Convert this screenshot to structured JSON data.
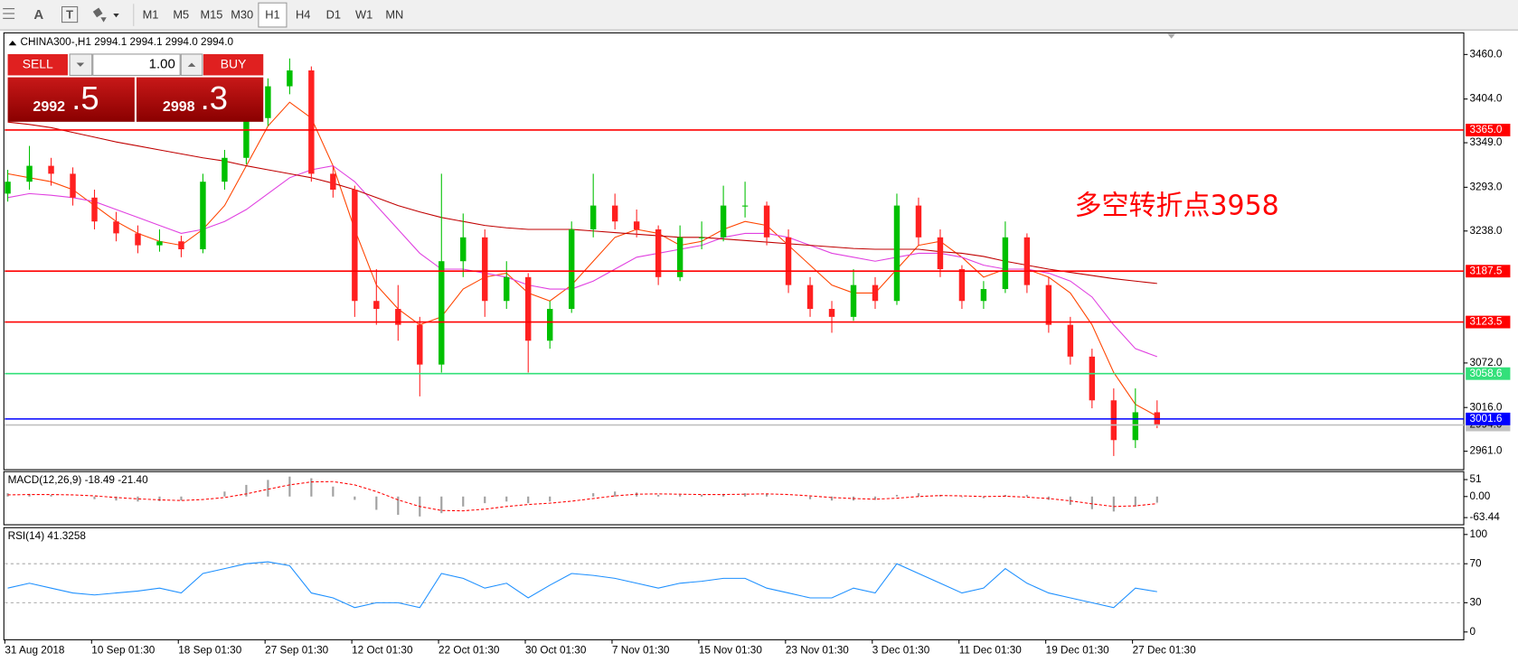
{
  "toolbar": {
    "tools": [
      "A",
      "T"
    ],
    "timeframes": [
      "M1",
      "M5",
      "M15",
      "M30",
      "H1",
      "H4",
      "D1",
      "W1",
      "MN"
    ],
    "active": "H1"
  },
  "trade_panel": {
    "sell": "SELL",
    "volume": "1.00",
    "buy": "BUY",
    "bid": "2992",
    "bid_fraction": ".5",
    "ask": "2998",
    "ask_fraction": ".3"
  },
  "chart_data": [
    {
      "type": "candlestick",
      "title": "CHINA300-,H1 2994.1 2994.1 2994.0 2994.0",
      "annotation": "多空转折点3958",
      "annotation_color": "#ff0000",
      "categories": [
        "31 Aug 2018",
        null,
        null,
        null,
        "10 Sep 01:30",
        null,
        null,
        null,
        "18 Sep 01:30",
        null,
        null,
        null,
        "27 Sep 01:30",
        null,
        null,
        null,
        "12 Oct 01:30",
        null,
        null,
        null,
        "22 Oct 01:30",
        null,
        null,
        null,
        "30 Oct 01:30",
        null,
        null,
        null,
        "7 Nov 01:30",
        null,
        null,
        null,
        "15 Nov 01:30",
        null,
        null,
        null,
        "23 Nov 01:30",
        null,
        null,
        null,
        "3 Dec 01:30",
        null,
        null,
        null,
        "11 Dec 01:30",
        null,
        null,
        null,
        "19 Dec 01:30",
        null,
        null,
        null,
        "27 Dec 01:30",
        null
      ],
      "open": [
        3285,
        3300,
        3320,
        3310,
        3280,
        3250,
        3235,
        3220,
        3225,
        3215,
        3300,
        3330,
        3380,
        3420,
        3440,
        3310,
        3290,
        3150,
        3140,
        3120,
        3070,
        3200,
        3230,
        3150,
        3180,
        3100,
        3140,
        3240,
        3270,
        3250,
        3240,
        3180,
        3230,
        3230,
        3270,
        3270,
        3230,
        3170,
        3140,
        3130,
        3170,
        3150,
        3270,
        3230,
        3190,
        3150,
        3165,
        3230,
        3170,
        3120,
        3080,
        3025,
        2975,
        3010
      ],
      "high": [
        3315,
        3345,
        3330,
        3318,
        3290,
        3262,
        3245,
        3240,
        3232,
        3310,
        3340,
        3395,
        3430,
        3455,
        3445,
        3320,
        3295,
        3190,
        3170,
        3130,
        3310,
        3260,
        3240,
        3200,
        3185,
        3150,
        3250,
        3310,
        3285,
        3265,
        3245,
        3245,
        3250,
        3295,
        3300,
        3275,
        3240,
        3180,
        3150,
        3190,
        3180,
        3285,
        3280,
        3240,
        3195,
        3175,
        3250,
        3235,
        3180,
        3130,
        3090,
        3040,
        3040,
        3025
      ],
      "low": [
        3275,
        3290,
        3295,
        3270,
        3240,
        3225,
        3210,
        3212,
        3205,
        3210,
        3290,
        3322,
        3370,
        3410,
        3300,
        3280,
        3130,
        3120,
        3100,
        3030,
        3060,
        3180,
        3130,
        3140,
        3060,
        3090,
        3135,
        3230,
        3240,
        3230,
        3170,
        3175,
        3215,
        3225,
        3255,
        3220,
        3160,
        3130,
        3110,
        3125,
        3140,
        3145,
        3220,
        3180,
        3140,
        3140,
        3160,
        3160,
        3110,
        3070,
        3015,
        2955,
        2965,
        2990
      ],
      "close": [
        3300,
        3320,
        3310,
        3280,
        3250,
        3235,
        3220,
        3225,
        3215,
        3300,
        3330,
        3380,
        3420,
        3440,
        3310,
        3290,
        3150,
        3140,
        3120,
        3070,
        3200,
        3230,
        3150,
        3180,
        3100,
        3140,
        3240,
        3270,
        3250,
        3240,
        3180,
        3230,
        3230,
        3270,
        3270,
        3230,
        3170,
        3140,
        3130,
        3170,
        3150,
        3270,
        3230,
        3190,
        3150,
        3165,
        3230,
        3170,
        3120,
        3080,
        3025,
        2975,
        3010,
        2994
      ],
      "up_color": "#00c000",
      "down_color": "#ff2020",
      "series": [
        {
          "color": "#ff4500",
          "values": [
            3310,
            3305,
            3300,
            3290,
            3270,
            3250,
            3235,
            3225,
            3220,
            3240,
            3270,
            3320,
            3370,
            3400,
            3380,
            3320,
            3240,
            3170,
            3140,
            3120,
            3130,
            3165,
            3180,
            3185,
            3160,
            3150,
            3170,
            3200,
            3230,
            3240,
            3235,
            3220,
            3225,
            3240,
            3250,
            3245,
            3220,
            3195,
            3170,
            3160,
            3160,
            3190,
            3220,
            3225,
            3205,
            3180,
            3190,
            3190,
            3180,
            3160,
            3120,
            3060,
            3020,
            3005
          ]
        },
        {
          "color": "#e040e0",
          "values": [
            3280,
            3285,
            3283,
            3280,
            3275,
            3265,
            3255,
            3245,
            3235,
            3240,
            3250,
            3265,
            3285,
            3305,
            3315,
            3320,
            3300,
            3270,
            3240,
            3210,
            3190,
            3190,
            3185,
            3180,
            3170,
            3165,
            3165,
            3175,
            3190,
            3205,
            3210,
            3215,
            3220,
            3230,
            3235,
            3235,
            3230,
            3220,
            3210,
            3205,
            3200,
            3205,
            3210,
            3210,
            3205,
            3195,
            3190,
            3190,
            3185,
            3175,
            3155,
            3120,
            3090,
            3080
          ]
        },
        {
          "color": "#c00000",
          "values": [
            3375,
            3372,
            3368,
            3362,
            3356,
            3350,
            3345,
            3340,
            3335,
            3330,
            3326,
            3320,
            3315,
            3310,
            3305,
            3298,
            3290,
            3280,
            3270,
            3262,
            3255,
            3250,
            3245,
            3242,
            3240,
            3240,
            3240,
            3238,
            3236,
            3234,
            3232,
            3230,
            3230,
            3228,
            3226,
            3224,
            3222,
            3220,
            3218,
            3216,
            3215,
            3215,
            3215,
            3212,
            3210,
            3206,
            3200,
            3195,
            3190,
            3186,
            3182,
            3178,
            3175,
            3172
          ]
        }
      ],
      "levels": [
        {
          "value": 3365.0,
          "label": "3365.0",
          "color": "#ff0000",
          "text_color": "#ffffff"
        },
        {
          "value": 3187.5,
          "label": "3187.5",
          "color": "#ff0000",
          "text_color": "#ffffff"
        },
        {
          "value": 3123.5,
          "label": "3123.5",
          "color": "#ff0000",
          "text_color": "#ffffff"
        },
        {
          "value": 3058.6,
          "label": "3058.6",
          "color": "#33e07a",
          "text_color": "#ffffff"
        },
        {
          "value": 2994.0,
          "label": "2994.0",
          "color": "#c0c0c0",
          "text_color": "#000000"
        },
        {
          "value": 3001.6,
          "label": "3001.6",
          "color": "#0000ff",
          "text_color": "#ffffff"
        }
      ],
      "ylim": [
        2939,
        3486
      ],
      "yticks": [
        {
          "value": 3460,
          "label": "3460.0"
        },
        {
          "value": 3404,
          "label": "3404.0"
        },
        {
          "value": 3349,
          "label": "3349.0"
        },
        {
          "value": 3293,
          "label": "3293.0"
        },
        {
          "value": 3238,
          "label": "3238.0"
        },
        {
          "value": 3072,
          "label": "3072.0"
        },
        {
          "value": 3016,
          "label": "3016.0"
        },
        {
          "value": 2961,
          "label": "2961.0"
        }
      ]
    },
    {
      "type": "macd",
      "title": "MACD(12,26,9) -18.49 -21.40",
      "histogram_color": "#a0a0a0",
      "signal_color": "#ff0000",
      "histogram": [
        10,
        8,
        5,
        0,
        -8,
        -12,
        -15,
        -14,
        -12,
        0,
        15,
        35,
        50,
        60,
        55,
        30,
        -10,
        -40,
        -55,
        -60,
        -50,
        -30,
        -20,
        -15,
        -20,
        -15,
        0,
        10,
        15,
        12,
        5,
        5,
        5,
        8,
        10,
        8,
        0,
        -8,
        -12,
        -12,
        -10,
        5,
        10,
        5,
        -2,
        -5,
        5,
        5,
        -10,
        -25,
        -38,
        -45,
        -30,
        -18.49
      ],
      "signal": [
        5,
        6,
        6,
        5,
        2,
        -3,
        -7,
        -10,
        -12,
        -9,
        -3,
        8,
        22,
        35,
        44,
        45,
        35,
        15,
        -10,
        -30,
        -42,
        -43,
        -38,
        -30,
        -24,
        -20,
        -14,
        -6,
        2,
        7,
        8,
        7,
        6,
        6,
        7,
        8,
        6,
        2,
        -3,
        -6,
        -8,
        -5,
        0,
        3,
        2,
        0,
        1,
        -2,
        -6,
        -13,
        -22,
        -30,
        -28,
        -21.4
      ],
      "ylim": [
        -85,
        75
      ],
      "yticks": [
        51,
        {
          "value": 0,
          "label": "0.00"
        },
        -63.44
      ]
    },
    {
      "type": "line",
      "title": "RSI(14) 41.3258",
      "color": "#1e90ff",
      "values": [
        45,
        50,
        45,
        40,
        38,
        40,
        42,
        45,
        40,
        60,
        65,
        70,
        72,
        68,
        40,
        35,
        25,
        30,
        30,
        25,
        60,
        55,
        45,
        50,
        35,
        48,
        60,
        58,
        55,
        50,
        45,
        50,
        52,
        55,
        55,
        45,
        40,
        35,
        35,
        45,
        40,
        70,
        60,
        50,
        40,
        45,
        65,
        50,
        40,
        35,
        30,
        25,
        45,
        41.3258
      ],
      "levels": [
        70,
        30
      ],
      "ylim": [
        -7,
        107
      ],
      "yticks": [
        100,
        70,
        30,
        0
      ]
    }
  ]
}
